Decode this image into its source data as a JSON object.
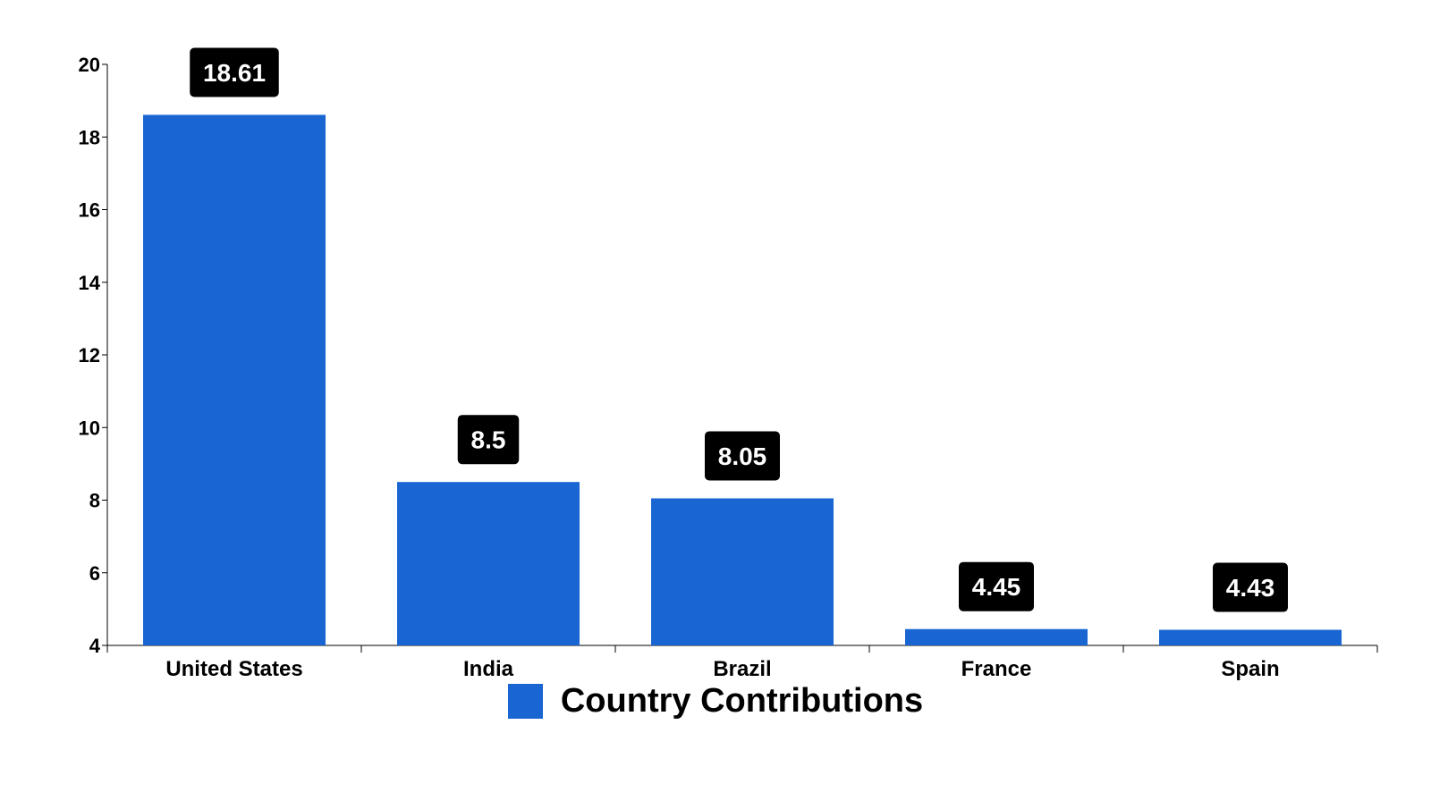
{
  "chart_data": {
    "type": "bar",
    "categories": [
      "United States",
      "India",
      "Brazil",
      "France",
      "Spain"
    ],
    "series": [
      {
        "name": "Country Contributions",
        "values": [
          18.61,
          8.5,
          8.05,
          4.45,
          4.43
        ]
      }
    ],
    "data_labels": [
      "18.61",
      "8.5",
      "8.05",
      "4.45",
      "4.43"
    ],
    "ylim": [
      4,
      20
    ],
    "yticks": [
      "4",
      "6",
      "8",
      "10",
      "12",
      "14",
      "16",
      "18",
      "20"
    ],
    "title": "",
    "xlabel": "",
    "ylabel": "",
    "grid": false,
    "legend_position": "bottom-center",
    "colors": {
      "bar": "#1966d2",
      "label_bg": "#000000",
      "label_text": "#ffffff",
      "axis": "#000000"
    }
  }
}
